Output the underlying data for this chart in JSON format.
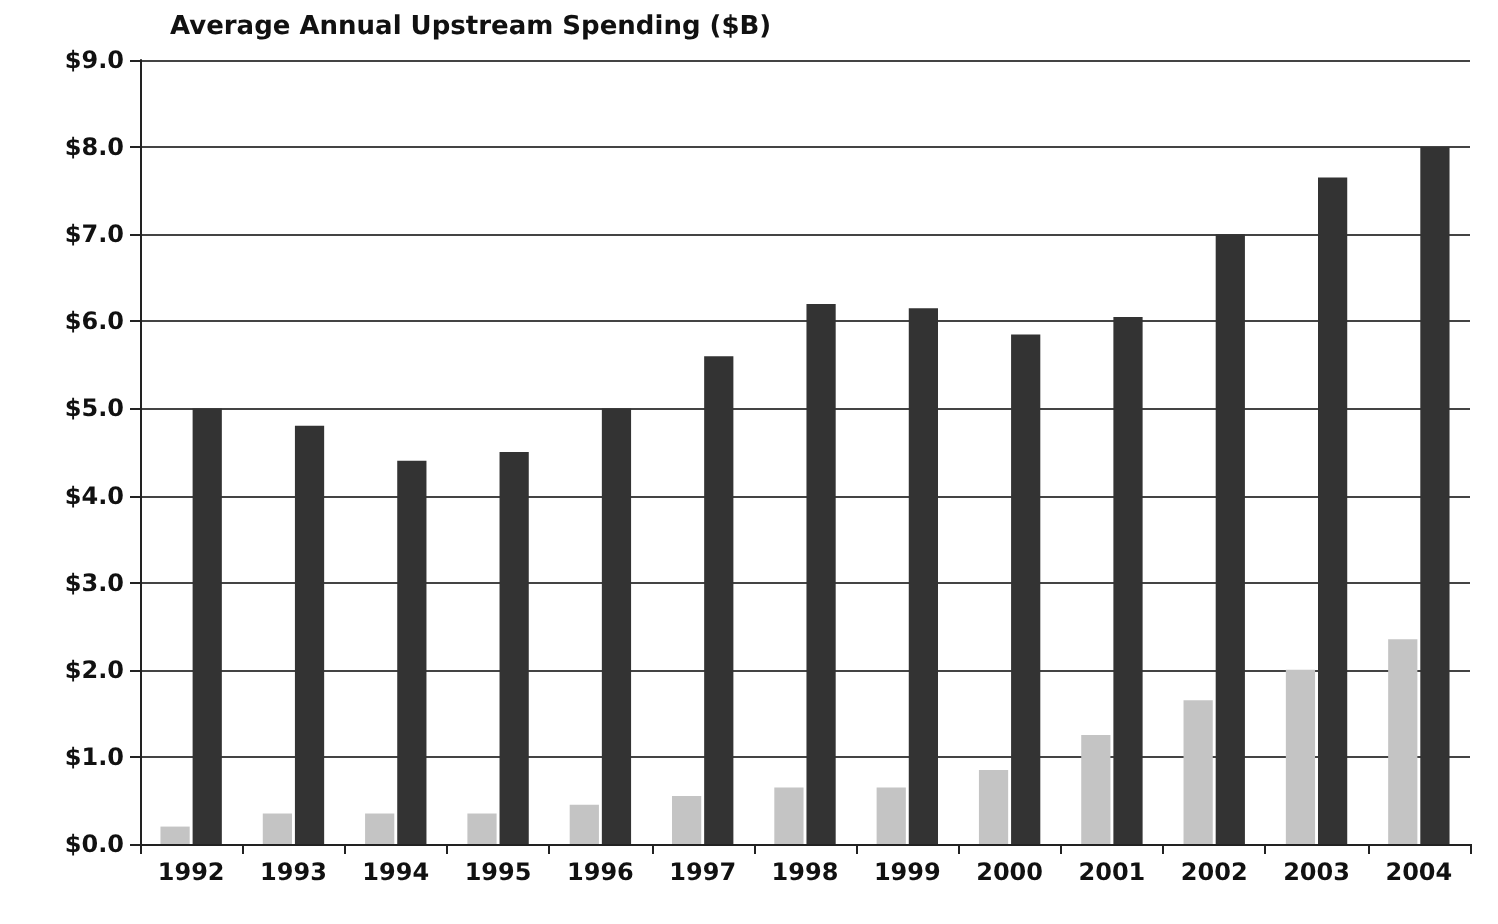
{
  "chart_data": {
    "type": "bar",
    "title": "Average Annual Upstream Spending ($B)",
    "categories": [
      "1992",
      "1993",
      "1994",
      "1995",
      "1996",
      "1997",
      "1998",
      "1999",
      "2000",
      "2001",
      "2002",
      "2003",
      "2004"
    ],
    "series": [
      {
        "color": "#c4c4c4",
        "values": [
          0.2,
          0.35,
          0.35,
          0.35,
          0.45,
          0.55,
          0.65,
          0.65,
          0.85,
          1.25,
          1.65,
          2.0,
          2.35
        ]
      },
      {
        "color": "#333333",
        "values": [
          5.0,
          4.8,
          4.4,
          4.5,
          5.0,
          5.6,
          6.2,
          6.15,
          5.85,
          6.05,
          7.0,
          7.65,
          8.0
        ]
      }
    ],
    "ylim": [
      0,
      9
    ],
    "yticks": [
      {
        "value": 0,
        "label": "$0.0"
      },
      {
        "value": 1,
        "label": "$1.0"
      },
      {
        "value": 2,
        "label": "$2.0"
      },
      {
        "value": 3,
        "label": "$3.0"
      },
      {
        "value": 4,
        "label": "$4.0"
      },
      {
        "value": 5,
        "label": "$5.0"
      },
      {
        "value": 6,
        "label": "$6.0"
      },
      {
        "value": 7,
        "label": "$7.0"
      },
      {
        "value": 8,
        "label": "$8.0"
      },
      {
        "value": 9,
        "label": "$9.0"
      }
    ],
    "grid": "y"
  }
}
